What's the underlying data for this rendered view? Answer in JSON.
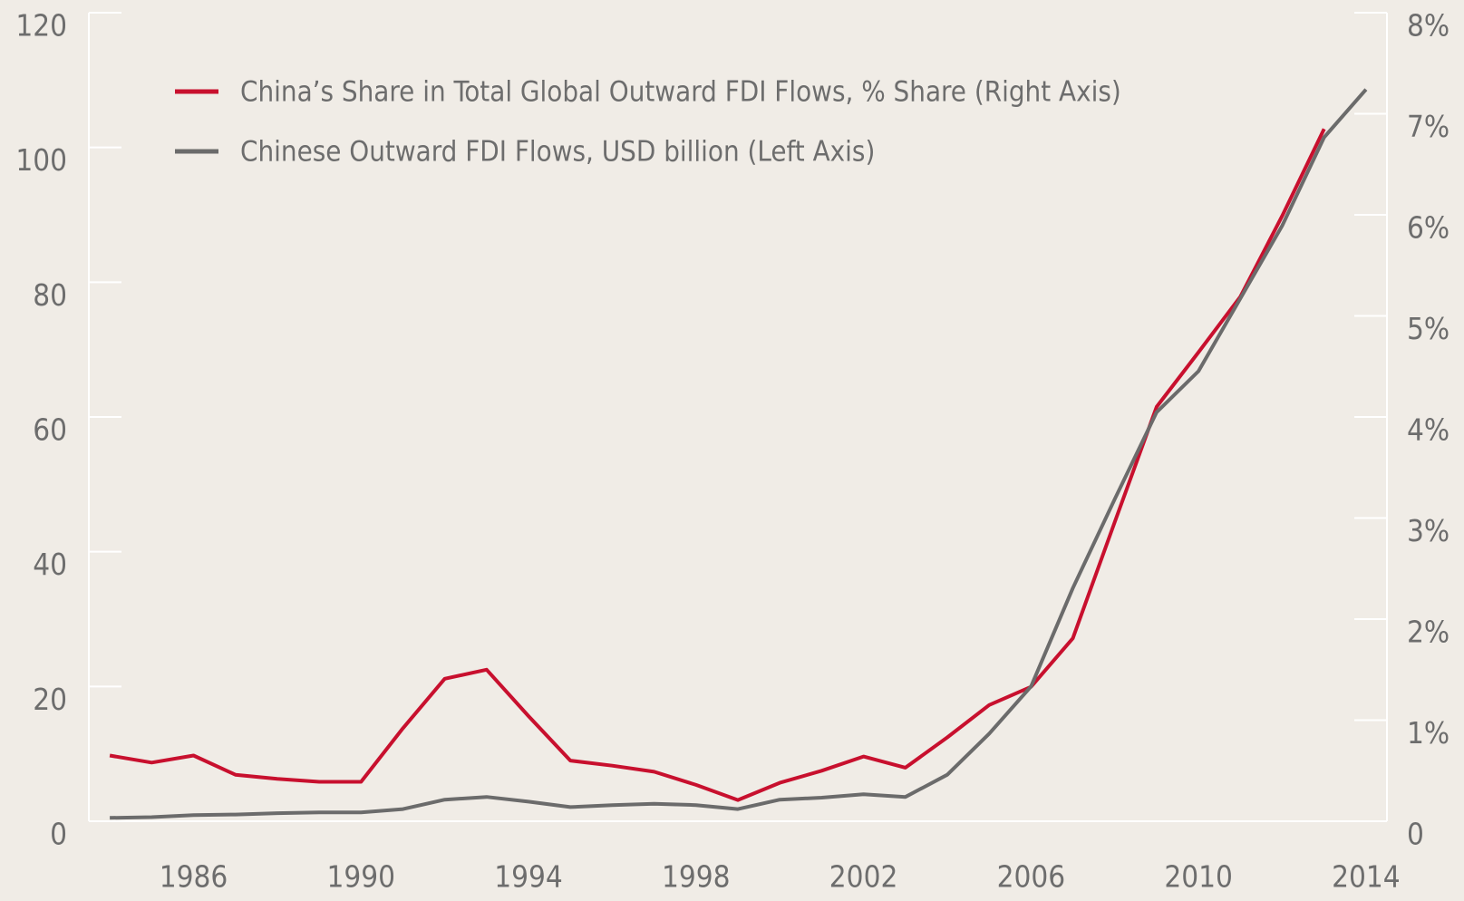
{
  "chart_data": {
    "type": "line",
    "x": [
      1984,
      1985,
      1986,
      1987,
      1988,
      1989,
      1990,
      1991,
      1992,
      1993,
      1994,
      1995,
      1996,
      1997,
      1998,
      1999,
      2000,
      2001,
      2002,
      2003,
      2004,
      2005,
      2006,
      2007,
      2008,
      2009,
      2010,
      2011,
      2012,
      2013,
      2014
    ],
    "series": [
      {
        "name": "China’s Share in Total Global Outward FDI Flows, % Share (Right Axis)",
        "color": "#c8102e",
        "axis": "y2",
        "values": [
          0.65,
          0.58,
          0.65,
          0.46,
          0.42,
          0.39,
          0.39,
          0.92,
          1.41,
          1.5,
          1.04,
          0.6,
          0.55,
          0.49,
          0.36,
          0.21,
          0.38,
          0.5,
          0.64,
          0.53,
          0.83,
          1.15,
          1.33,
          1.81,
          2.96,
          4.1,
          4.64,
          5.19,
          5.99,
          6.85,
          null
        ]
      },
      {
        "name": "Chinese Outward FDI Flows, USD billion (Left Axis)",
        "color": "#6b6b6b",
        "axis": "y",
        "values": [
          0.5,
          0.6,
          0.9,
          1.0,
          1.2,
          1.3,
          1.3,
          1.8,
          3.2,
          3.6,
          2.9,
          2.1,
          2.4,
          2.6,
          2.4,
          1.8,
          3.2,
          3.5,
          4.0,
          3.6,
          6.9,
          13,
          20,
          34.6,
          47.8,
          60.7,
          66.8,
          77.6,
          88.4,
          101.5,
          108.6
        ]
      }
    ],
    "xlim": [
      1983.5,
      2014.5
    ],
    "xticks": [
      1986,
      1990,
      1994,
      1998,
      2002,
      2006,
      2010,
      2014
    ],
    "ylim": [
      0,
      120
    ],
    "yticks": [
      0,
      20,
      40,
      60,
      80,
      100,
      120
    ],
    "y2lim": [
      0,
      8
    ],
    "y2ticks": [
      0,
      {
        "value": 1,
        "label": "1%"
      },
      {
        "value": 2,
        "label": "2%"
      },
      {
        "value": 3,
        "label": "3%"
      },
      {
        "value": 4,
        "label": "4%"
      },
      {
        "value": 5,
        "label": "5%"
      },
      {
        "value": 6,
        "label": "6%"
      },
      {
        "value": 7,
        "label": "7%"
      },
      {
        "value": 8,
        "label": "8%"
      }
    ],
    "legend": "top-left"
  }
}
